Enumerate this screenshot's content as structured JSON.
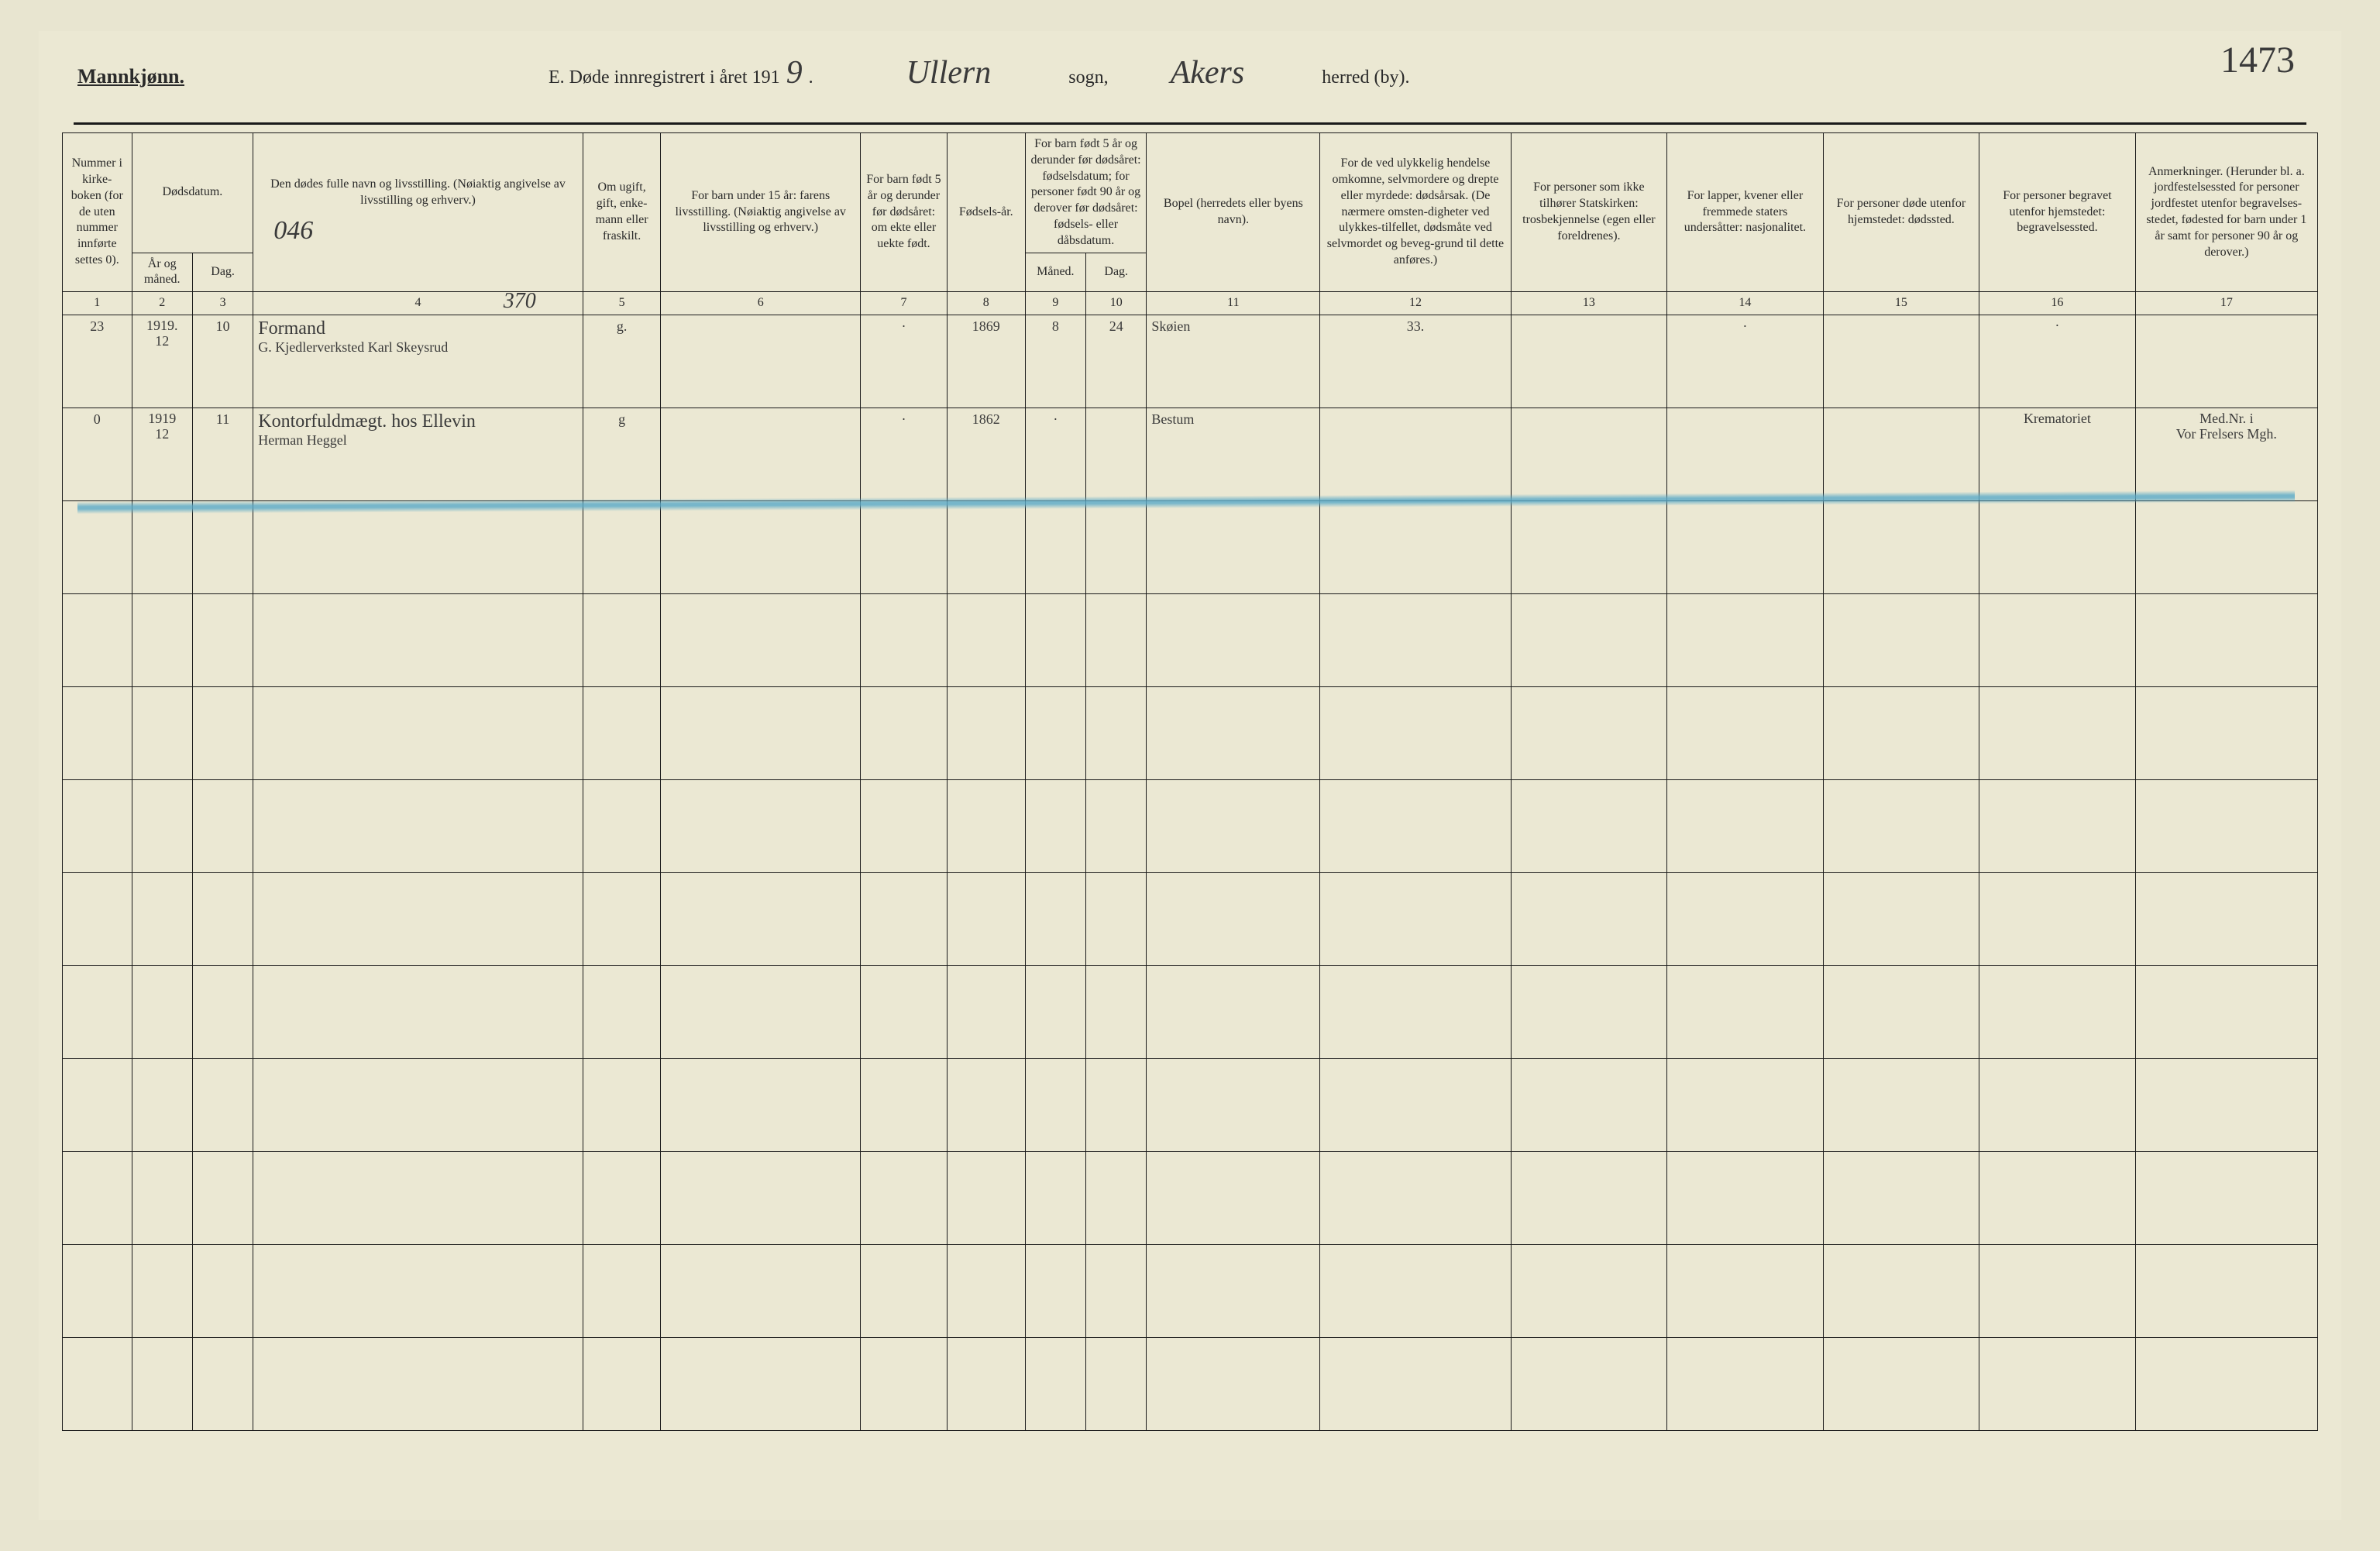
{
  "header": {
    "gender_label": "Mannkjønn.",
    "title_prefix": "E. Døde innregistrert i året 191",
    "year_suffix": "9",
    "period": ".",
    "sogn_value": "Ullern",
    "sogn_label": "sogn,",
    "herred_value": "Akers",
    "herred_label": "herred (by).",
    "page_number": "1473"
  },
  "columns": {
    "c1": "Nummer i kirke-boken (for de uten nummer innførte settes 0).",
    "c2_top": "Dødsdatum.",
    "c2a": "År og måned.",
    "c2b": "Dag.",
    "c4": "Den dødes fulle navn og livsstilling. (Nøiaktig angivelse av livsstilling og erhverv.)",
    "c4_hand": "046",
    "c4_hand2": "370",
    "c5": "Om ugift, gift, enke-mann eller fraskilt.",
    "c6": "For barn under 15 år: farens livsstilling. (Nøiaktig angivelse av livsstilling og erhverv.)",
    "c7": "For barn født 5 år og derunder før dødsåret: om ekte eller uekte født.",
    "c8": "Fødsels-år.",
    "c9_top": "For barn født 5 år og derunder før dødsåret: fødselsdatum; for personer født 90 år og derover før dødsåret: fødsels- eller dåbsdatum.",
    "c9a": "Måned.",
    "c9b": "Dag.",
    "c11": "Bopel (herredets eller byens navn).",
    "c12": "For de ved ulykkelig hendelse omkomne, selvmordere og drepte eller myrdede: dødsårsak. (De nærmere omsten-digheter ved ulykkes-tilfellet, dødsmåte ved selvmordet og beveg-grund til dette anføres.)",
    "c13": "For personer som ikke tilhører Statskirken: trosbekjennelse (egen eller foreldrenes).",
    "c14": "For lapper, kvener eller fremmede staters undersåtter: nasjonalitet.",
    "c15": "For personer døde utenfor hjemstedet: dødssted.",
    "c16": "For personer begravet utenfor hjemstedet: begravelsessted.",
    "c17": "Anmerkninger. (Herunder bl. a. jordfestelsessted for personer jordfestet utenfor begravelses-stedet, fødested for barn under 1 år samt for personer 90 år og derover.)"
  },
  "col_numbers": [
    "1",
    "2",
    "3",
    "4",
    "5",
    "6",
    "7",
    "8",
    "9",
    "10",
    "11",
    "12",
    "13",
    "14",
    "15",
    "16",
    "17"
  ],
  "rows": [
    {
      "num": "23",
      "year_month_top": "1919.",
      "year_month_bot": "12",
      "day": "10",
      "name_top": "Formand",
      "name_bot": "G. Kjedlerverksted Karl Skeysrud",
      "status": "g.",
      "col6": "",
      "col7": "·",
      "birth_year": "1869",
      "birth_month": "8",
      "birth_day": "24",
      "residence": "Skøien",
      "col12": "33.",
      "col13": "",
      "col14": "·",
      "col15": "",
      "col16": "·",
      "col17": ""
    },
    {
      "num": "0",
      "year_month_top": "1919",
      "year_month_bot": "12",
      "day": "11",
      "name_top": "Kontorfuldmægt. hos Ellevin",
      "name_bot": "Herman Heggel",
      "status": "g",
      "col6": "",
      "col7": "·",
      "birth_year": "1862",
      "birth_month": "·",
      "birth_day": "",
      "residence": "Bestum",
      "col12": "",
      "col13": "",
      "col14": "",
      "col15": "",
      "col16": "Krematoriet",
      "col17_top": "Med.Nr. i",
      "col17_bot": "Vor Frelsers Mgh."
    }
  ],
  "empty_row_count": 10,
  "colors": {
    "paper": "#ebe8d3",
    "ink": "#2a2a2a",
    "handwriting": "#3a3a3a",
    "blue_pencil": "#5aaac8"
  }
}
